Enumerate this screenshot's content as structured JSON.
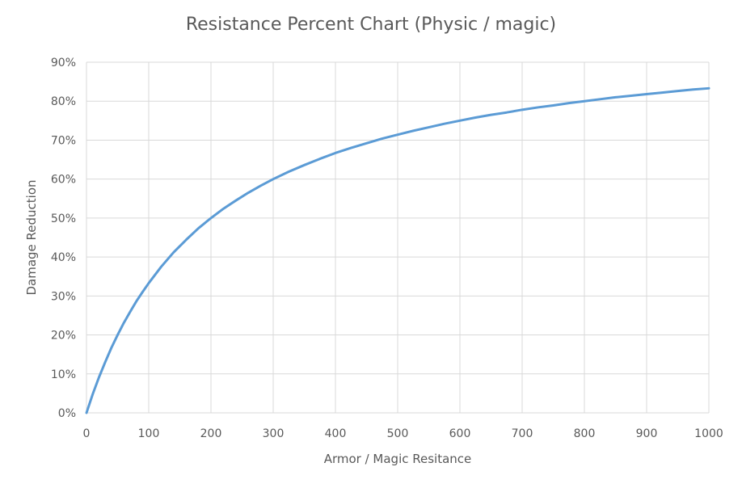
{
  "chart_data": {
    "type": "line",
    "title": "Resistance Percent Chart (Physic / magic)",
    "xlabel": "Armor / Magic Resitance",
    "ylabel": "Damage Reduction",
    "xlim": [
      0,
      1000
    ],
    "ylim": [
      0,
      90
    ],
    "x_ticks": [
      "0",
      "100",
      "200",
      "300",
      "400",
      "500",
      "600",
      "700",
      "800",
      "900",
      "1000"
    ],
    "y_ticks": [
      "0%",
      "10%",
      "20%",
      "30%",
      "40%",
      "50%",
      "60%",
      "70%",
      "80%",
      "90%"
    ],
    "grid": true,
    "legend": "none",
    "series_color": "#5b9bd5",
    "series": [
      {
        "x": [
          0,
          10,
          20,
          30,
          40,
          50,
          60,
          70,
          80,
          90,
          100,
          120,
          140,
          160,
          180,
          200,
          220,
          240,
          260,
          280,
          300,
          325,
          350,
          375,
          400,
          425,
          450,
          475,
          500,
          525,
          550,
          575,
          600,
          625,
          650,
          675,
          700,
          725,
          750,
          775,
          800,
          825,
          850,
          875,
          900,
          925,
          950,
          975,
          1000
        ],
        "y": [
          0,
          4.8,
          9.1,
          13.0,
          16.7,
          20.0,
          23.1,
          25.9,
          28.6,
          31.0,
          33.3,
          37.5,
          41.2,
          44.4,
          47.4,
          50.0,
          52.4,
          54.5,
          56.5,
          58.3,
          60.0,
          61.9,
          63.6,
          65.2,
          66.7,
          68.0,
          69.2,
          70.4,
          71.4,
          72.4,
          73.3,
          74.2,
          75.0,
          75.8,
          76.5,
          77.1,
          77.8,
          78.4,
          78.9,
          79.5,
          80.0,
          80.5,
          81.0,
          81.4,
          81.8,
          82.2,
          82.6,
          83.0,
          83.3
        ]
      }
    ]
  }
}
